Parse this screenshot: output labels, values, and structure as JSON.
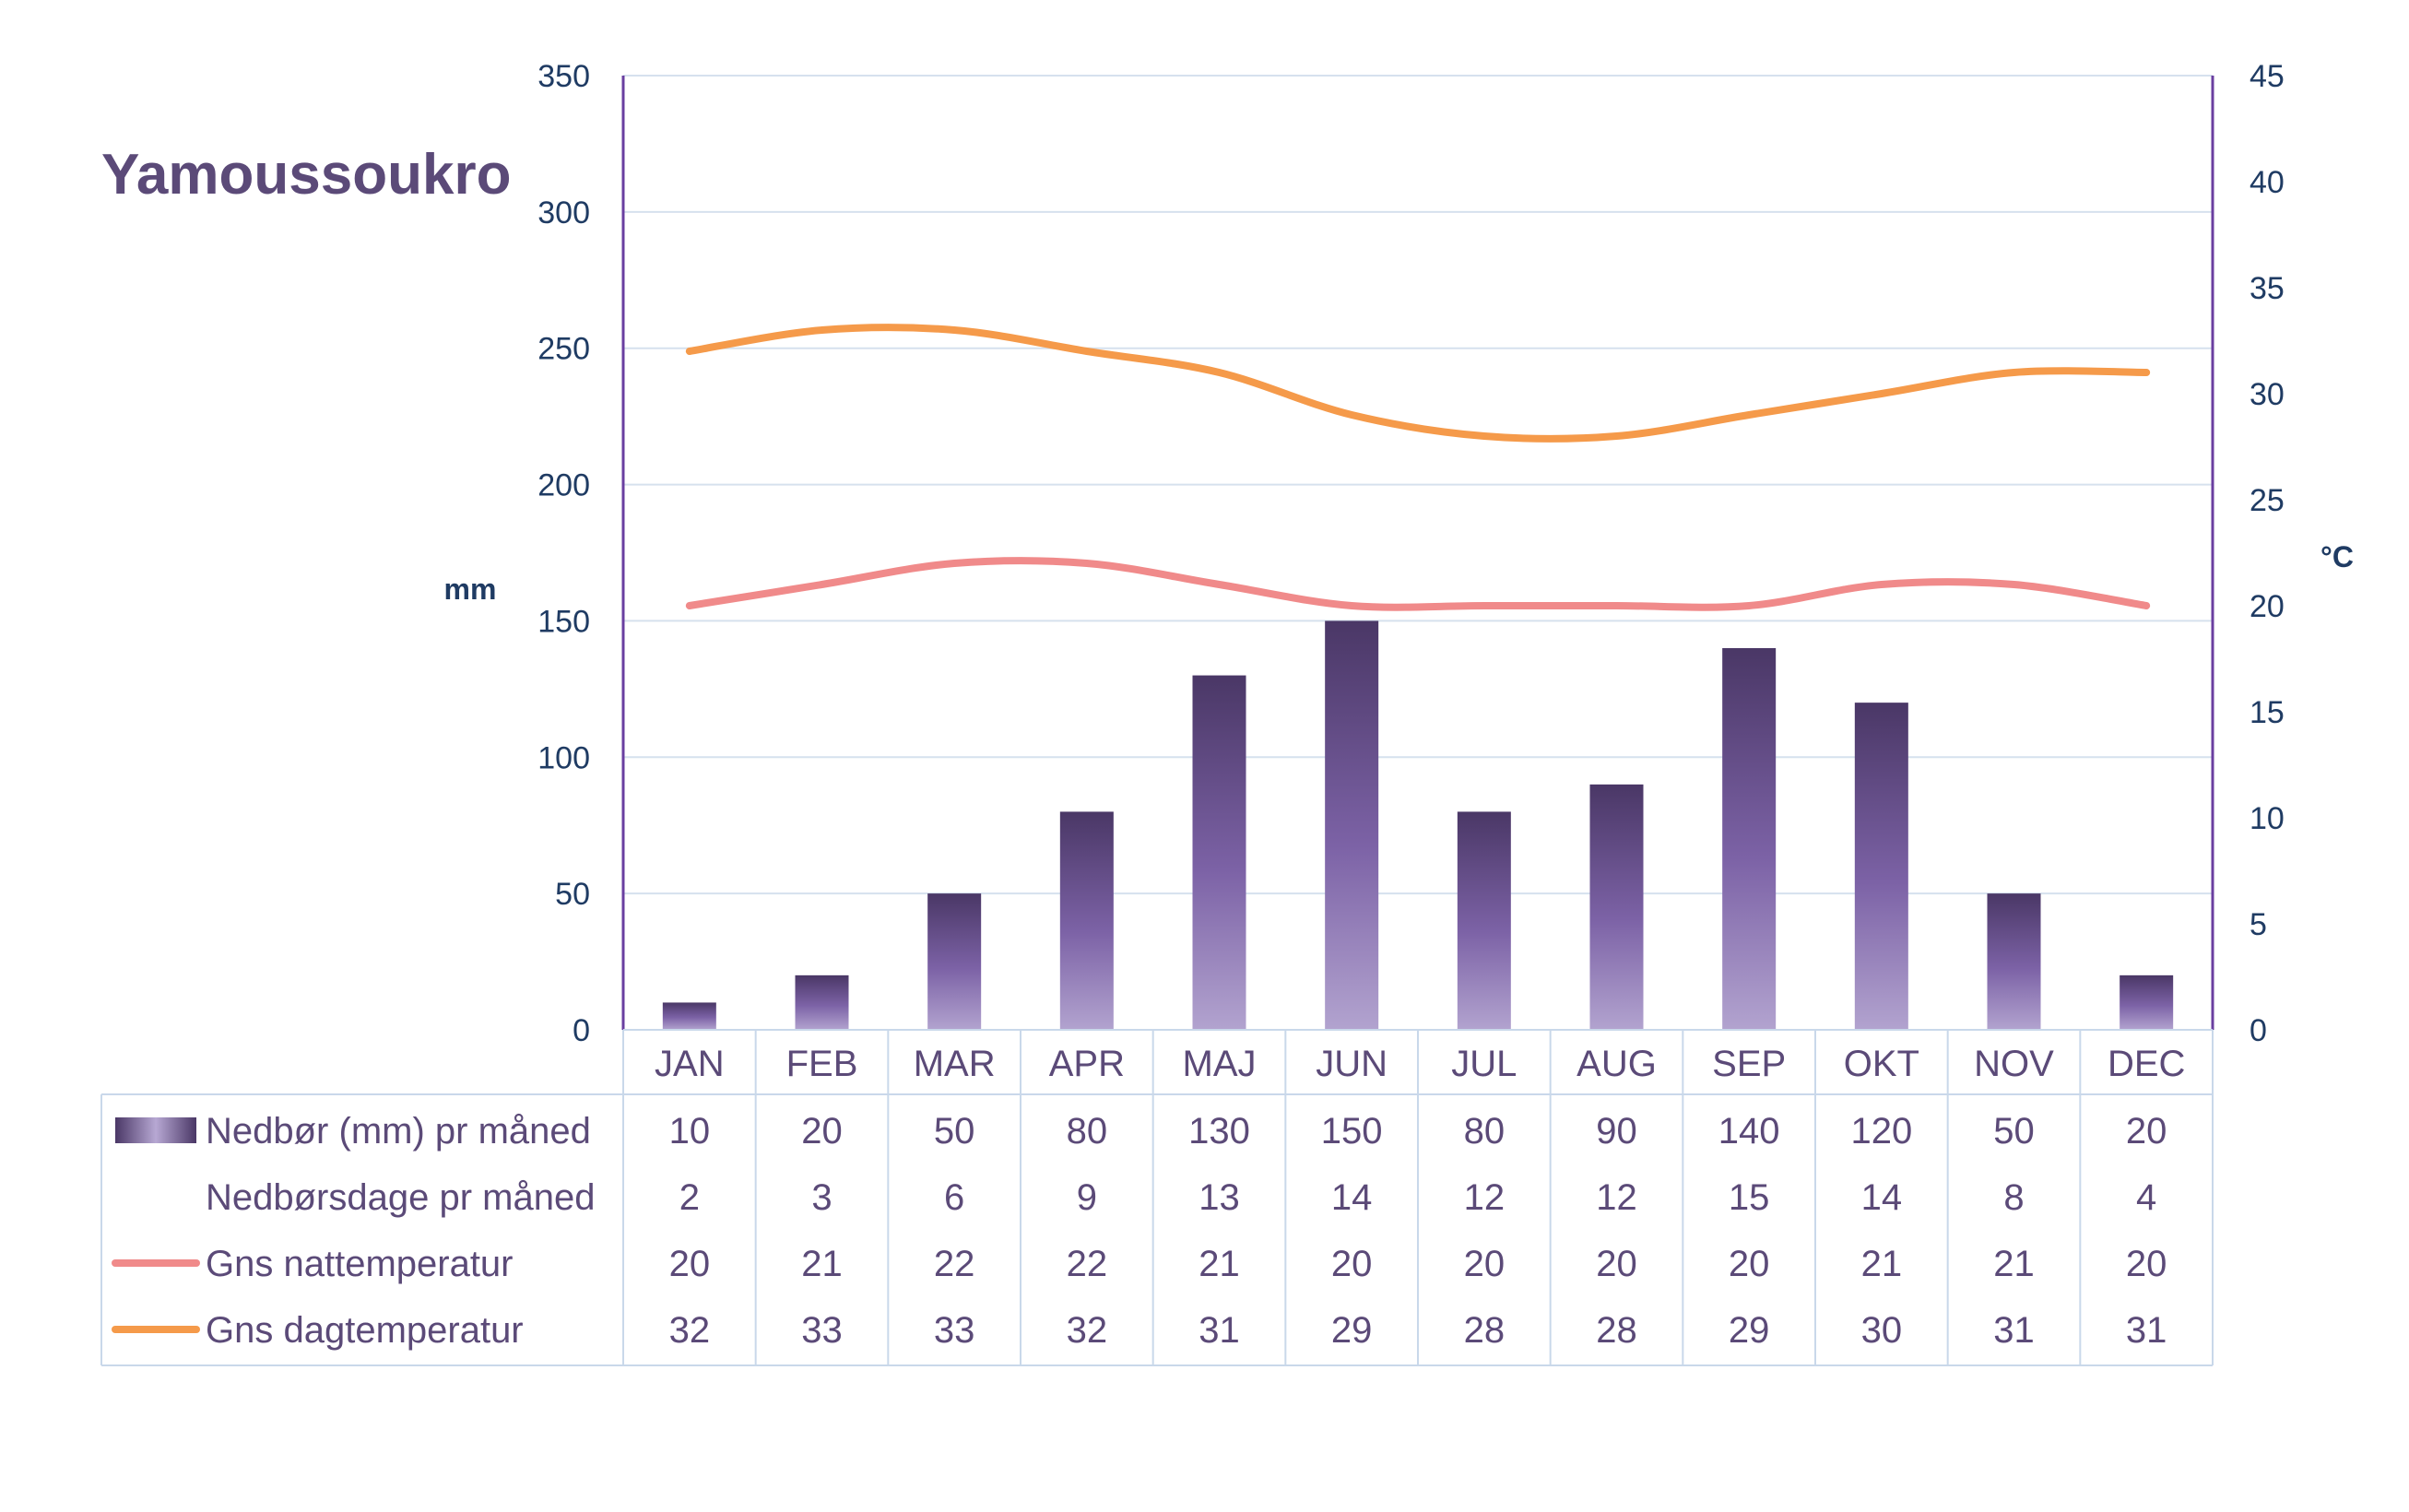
{
  "chart_data": {
    "type": "bar",
    "title": "Yamoussoukro",
    "categories": [
      "JAN",
      "FEB",
      "MAR",
      "APR",
      "MAJ",
      "JUN",
      "JUL",
      "AUG",
      "SEP",
      "OKT",
      "NOV",
      "DEC"
    ],
    "y_left": {
      "label": "mm",
      "min": 0,
      "max": 350,
      "ticks": [
        0,
        50,
        100,
        150,
        200,
        250,
        300,
        350
      ]
    },
    "y_right": {
      "label": "°C",
      "min": 0,
      "max": 45,
      "ticks": [
        0,
        5,
        10,
        15,
        20,
        25,
        30,
        35,
        40,
        45
      ]
    },
    "grid": true,
    "legend": "table-below",
    "series": [
      {
        "name": "Nedbør (mm) pr måned",
        "kind": "bar",
        "axis": "left",
        "color": "#7a5fa3",
        "values": [
          10,
          20,
          50,
          80,
          130,
          150,
          80,
          90,
          140,
          120,
          50,
          20
        ]
      },
      {
        "name": "Nedbørsdage pr måned",
        "kind": "table-only",
        "values": [
          2,
          3,
          6,
          9,
          13,
          14,
          12,
          12,
          15,
          14,
          8,
          4
        ]
      },
      {
        "name": "Gns nattemperatur",
        "kind": "line",
        "axis": "right",
        "color": "#f08a8a",
        "values": [
          20,
          21,
          22,
          22,
          21,
          20,
          20,
          20,
          20,
          21,
          21,
          20
        ]
      },
      {
        "name": "Gns dagtemperatur",
        "kind": "line",
        "axis": "right",
        "color": "#f59a4a",
        "values": [
          32,
          33,
          33,
          32,
          31,
          29,
          28,
          28,
          29,
          30,
          31,
          31
        ]
      }
    ]
  }
}
